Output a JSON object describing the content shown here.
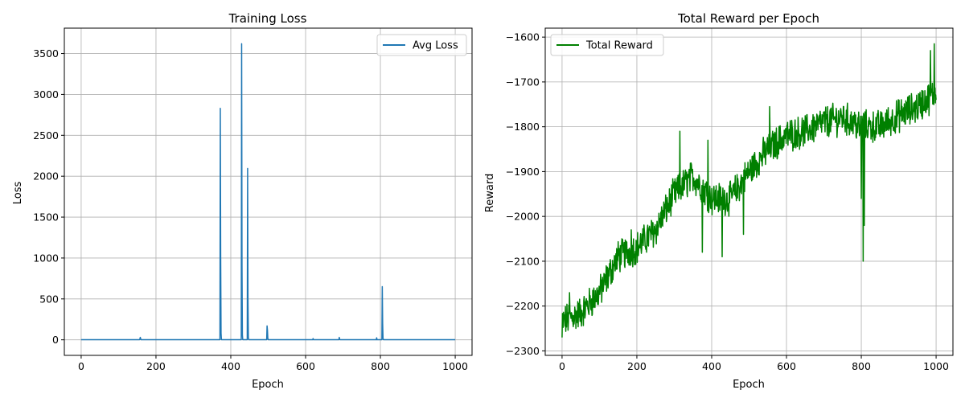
{
  "chart_data": [
    {
      "type": "line",
      "title": "Training Loss",
      "xlabel": "Epoch",
      "ylabel": "Loss",
      "xlim": [
        -45,
        1045
      ],
      "ylim": [
        -190,
        3810
      ],
      "xticks": [
        0,
        200,
        400,
        600,
        800,
        1000
      ],
      "yticks": [
        0,
        500,
        1000,
        1500,
        2000,
        2500,
        3000,
        3500
      ],
      "grid": true,
      "legend_position": "upper right",
      "series": [
        {
          "name": "Avg Loss",
          "color": "#1f77b4",
          "baseline": 2,
          "x_range": [
            0,
            1000
          ],
          "spikes": [
            {
              "x": 157,
              "y": 10
            },
            {
              "x": 158,
              "y": 30
            },
            {
              "x": 159,
              "y": 15
            },
            {
              "x": 372,
              "y": 2830
            },
            {
              "x": 373,
              "y": 1000
            },
            {
              "x": 374,
              "y": 80
            },
            {
              "x": 429,
              "y": 3620
            },
            {
              "x": 430,
              "y": 900
            },
            {
              "x": 431,
              "y": 60
            },
            {
              "x": 445,
              "y": 2095
            },
            {
              "x": 446,
              "y": 500
            },
            {
              "x": 447,
              "y": 30
            },
            {
              "x": 497,
              "y": 170
            },
            {
              "x": 498,
              "y": 120
            },
            {
              "x": 499,
              "y": 20
            },
            {
              "x": 620,
              "y": 15
            },
            {
              "x": 690,
              "y": 30
            },
            {
              "x": 691,
              "y": 10
            },
            {
              "x": 790,
              "y": 25
            },
            {
              "x": 805,
              "y": 650
            },
            {
              "x": 806,
              "y": 200
            },
            {
              "x": 807,
              "y": 20
            }
          ]
        }
      ]
    },
    {
      "type": "line",
      "title": "Total Reward per Epoch",
      "xlabel": "Epoch",
      "ylabel": "Reward",
      "xlim": [
        -45,
        1045
      ],
      "ylim": [
        -2310,
        -1580
      ],
      "xticks": [
        0,
        200,
        400,
        600,
        800,
        1000
      ],
      "yticks": [
        -2300,
        -2200,
        -2100,
        -2000,
        -1900,
        -1800,
        -1700,
        -1600
      ],
      "grid": true,
      "legend_position": "upper left",
      "series": [
        {
          "name": "Total Reward",
          "color": "#008000",
          "points": 1000,
          "trend": [
            [
              0,
              -2235
            ],
            [
              50,
              -2215
            ],
            [
              100,
              -2170
            ],
            [
              150,
              -2090
            ],
            [
              200,
              -2070
            ],
            [
              250,
              -2030
            ],
            [
              300,
              -1950
            ],
            [
              350,
              -1910
            ],
            [
              400,
              -1960
            ],
            [
              450,
              -1960
            ],
            [
              500,
              -1900
            ],
            [
              550,
              -1850
            ],
            [
              600,
              -1820
            ],
            [
              650,
              -1810
            ],
            [
              700,
              -1790
            ],
            [
              750,
              -1780
            ],
            [
              800,
              -1800
            ],
            [
              850,
              -1800
            ],
            [
              900,
              -1775
            ],
            [
              950,
              -1755
            ],
            [
              1000,
              -1725
            ]
          ],
          "noise_amplitude": 32,
          "features": [
            {
              "x": 0,
              "y": -2270
            },
            {
              "x": 20,
              "y": -2170
            },
            {
              "x": 185,
              "y": -2030
            },
            {
              "x": 315,
              "y": -1810
            },
            {
              "x": 375,
              "y": -2080
            },
            {
              "x": 390,
              "y": -1830
            },
            {
              "x": 428,
              "y": -2090
            },
            {
              "x": 485,
              "y": -2040
            },
            {
              "x": 555,
              "y": -1755
            },
            {
              "x": 795,
              "y": -1820
            },
            {
              "x": 800,
              "y": -1960
            },
            {
              "x": 805,
              "y": -2100
            },
            {
              "x": 808,
              "y": -2020
            },
            {
              "x": 825,
              "y": -1790
            },
            {
              "x": 985,
              "y": -1630
            },
            {
              "x": 995,
              "y": -1615
            },
            {
              "x": 1000,
              "y": -1740
            }
          ]
        }
      ]
    }
  ]
}
